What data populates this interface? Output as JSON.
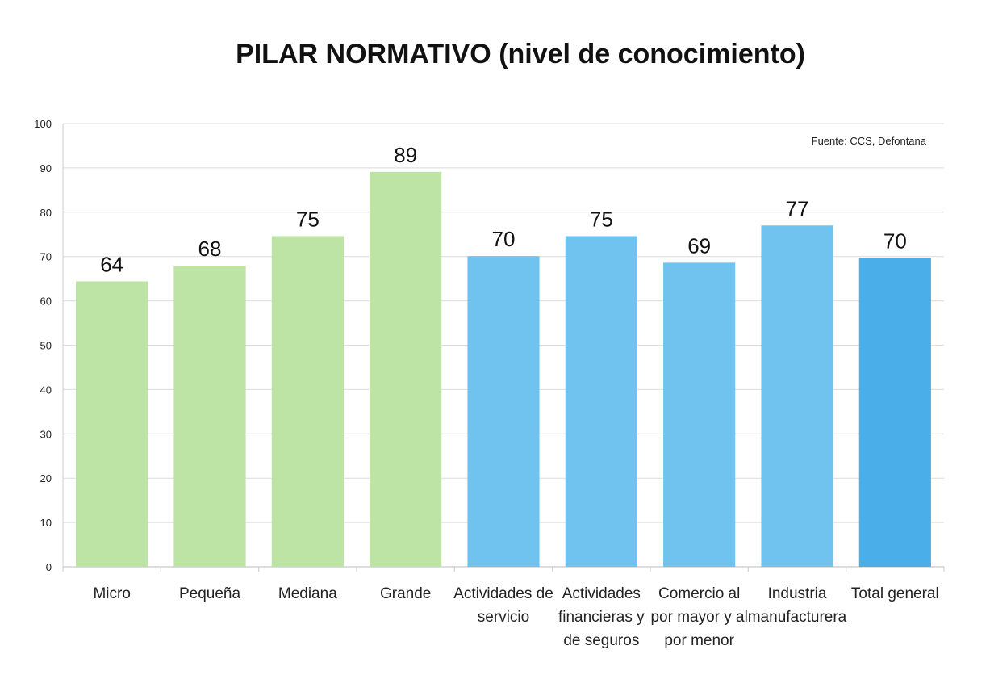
{
  "chart_data": {
    "type": "bar",
    "title": "PILAR NORMATIVO (nivel de conocimiento)",
    "source": "Fuente: CCS, Defontana",
    "xlabel": "",
    "ylabel": "",
    "ylim": [
      0,
      100
    ],
    "yticks": [
      0,
      10,
      20,
      30,
      40,
      50,
      60,
      70,
      80,
      90,
      100
    ],
    "grid": true,
    "categories": [
      "Micro",
      "Pequeña",
      "Mediana",
      "Grande",
      "Actividades de\nservicio",
      "Actividades\nfinancieras y\nde seguros",
      "Comercio al\npor mayor y al\npor menor",
      "Industria\nmanufacturera",
      "Total general"
    ],
    "values": [
      64.4,
      67.9,
      74.6,
      89.1,
      70.1,
      74.6,
      68.6,
      77.0,
      69.7
    ],
    "data_labels": [
      "64",
      "68",
      "75",
      "89",
      "70",
      "75",
      "69",
      "77",
      "70"
    ],
    "colors": [
      "#bde3a5",
      "#bde3a5",
      "#bde3a5",
      "#bde3a5",
      "#6fc3ee",
      "#6fc3ee",
      "#6fc3ee",
      "#6fc3ee",
      "#4aaee8"
    ]
  }
}
